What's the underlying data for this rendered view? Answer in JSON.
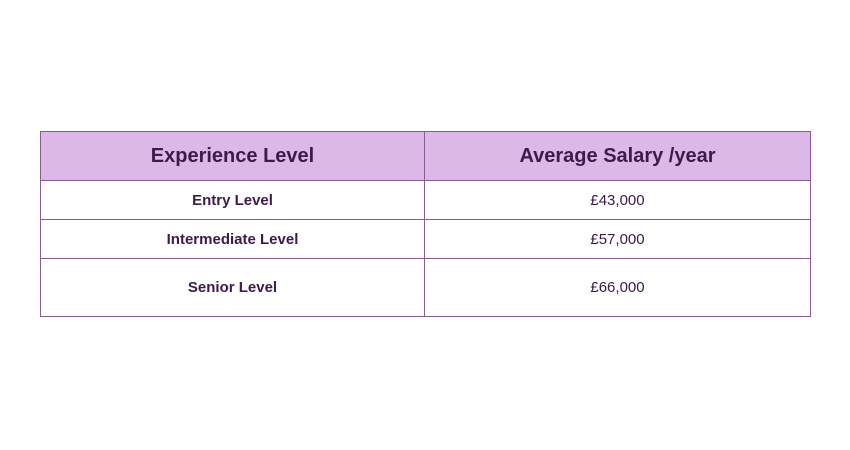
{
  "table": {
    "headers": {
      "experience": "Experience Level",
      "salary": "Average Salary /year"
    },
    "rows": [
      {
        "level": "Entry Level",
        "salary": "£43,000"
      },
      {
        "level": "Intermediate Level",
        "salary": "£57,000"
      },
      {
        "level": "Senior Level",
        "salary": "£66,000"
      }
    ]
  },
  "colors": {
    "header_background": "#dbb8e6",
    "border": "#8a5b92",
    "text": "#3d1a4b"
  }
}
